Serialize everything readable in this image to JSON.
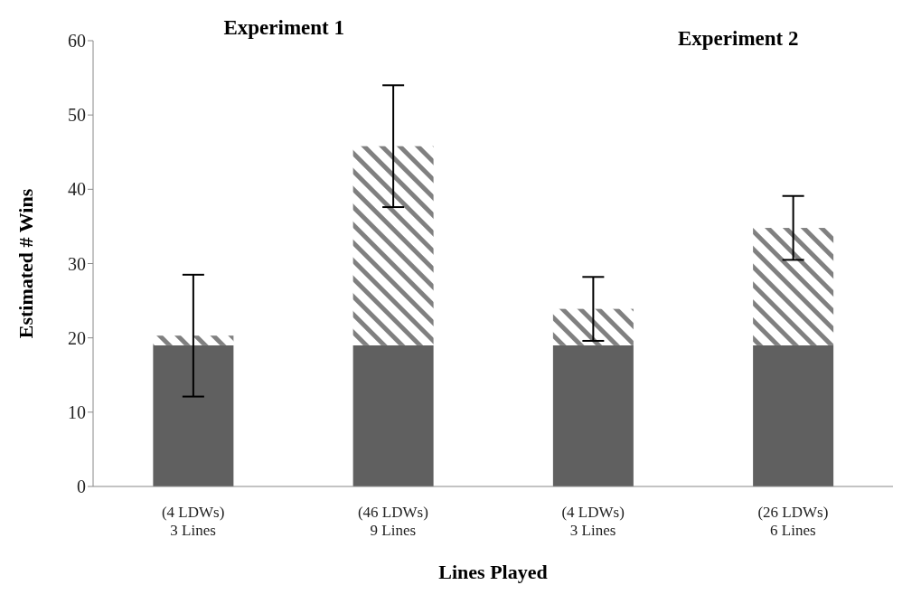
{
  "chart_data": {
    "type": "bar",
    "stacked": true,
    "xlabel": "Lines Played",
    "ylabel": "Estimated # Wins",
    "categories": [
      "(4 LDWs)\n3 Lines",
      "(46 LDWs)\n9 Lines",
      "(4 LDWs)\n3 Lines",
      "(26 LDWs)\n6 Lines"
    ],
    "series": [
      {
        "color": "#606060",
        "values": [
          19,
          19,
          19,
          19
        ]
      },
      {
        "color": "#808080",
        "values": [
          1.3,
          26.8,
          4.9,
          15.8
        ],
        "errors": [
          8.2,
          8.2,
          4.3,
          4.3
        ]
      }
    ],
    "ylim": [
      0,
      60
    ],
    "yticks": [
      0,
      10,
      20,
      30,
      40,
      50,
      60
    ],
    "annotations": [
      "Experiment 1",
      "Experiment 2"
    ]
  }
}
